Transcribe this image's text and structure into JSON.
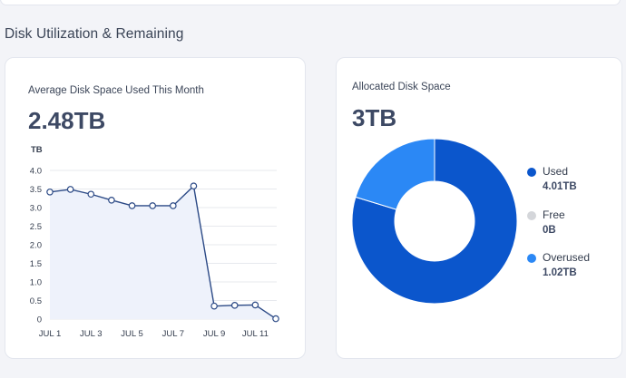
{
  "section": {
    "title": "Disk Utilization & Remaining"
  },
  "avg_card": {
    "label": "Average Disk Space Used This Month",
    "value": "2.48TB",
    "unit": "TB"
  },
  "alloc_card": {
    "label": "Allocated Disk Space",
    "value": "3TB",
    "legend": [
      {
        "name": "Used",
        "value": "4.01TB",
        "color": "#0b56cc"
      },
      {
        "name": "Free",
        "value": "0B",
        "color": "#d4d6da"
      },
      {
        "name": "Overused",
        "value": "1.02TB",
        "color": "#2b88f5"
      }
    ]
  },
  "chart_data": [
    {
      "type": "area",
      "ylabel": "TB",
      "ylim": [
        0,
        4.0
      ],
      "yticks": [
        "0",
        "0.5",
        "1.0",
        "1.5",
        "2.0",
        "2.5",
        "3.0",
        "3.5",
        "4.0"
      ],
      "xtick_labels": [
        "JUL 1",
        "JUL 3",
        "JUL 5",
        "JUL 7",
        "JUL 9",
        "JUL 11"
      ],
      "x": [
        1,
        2,
        3,
        4,
        5,
        6,
        7,
        8,
        9,
        10,
        11,
        12
      ],
      "values": [
        3.42,
        3.49,
        3.36,
        3.2,
        3.05,
        3.05,
        3.05,
        3.58,
        0.35,
        0.37,
        0.38,
        0.01
      ],
      "grid": true,
      "line_color": "#2c4a86",
      "fill_color": "#eef2fb"
    },
    {
      "type": "pie",
      "labels": [
        "Used",
        "Free",
        "Overused"
      ],
      "values": [
        4.01,
        0,
        1.02
      ],
      "colors": [
        "#0b56cc",
        "#d4d6da",
        "#2b88f5"
      ],
      "donut": true
    }
  ]
}
